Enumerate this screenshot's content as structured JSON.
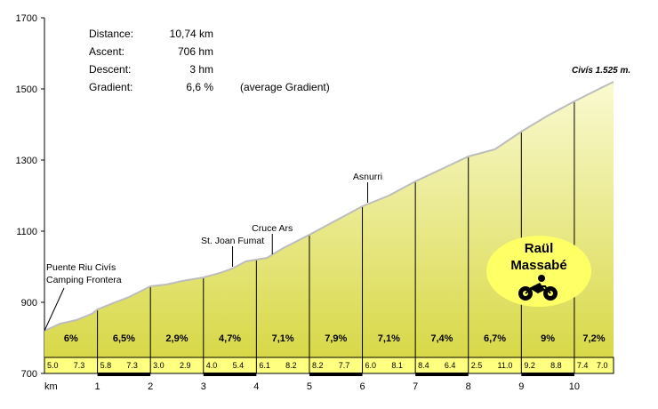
{
  "chart_data": {
    "type": "area",
    "title": "",
    "xlabel": "km",
    "ylabel": "",
    "xlim": [
      0,
      10.74
    ],
    "ylim": [
      700,
      1700
    ],
    "y_ticks": [
      "700",
      "900",
      "1100",
      "1300",
      "1500",
      "1700"
    ],
    "km_marks": [
      "1",
      "2",
      "3",
      "4",
      "5",
      "6",
      "7",
      "8",
      "9",
      "10"
    ],
    "profile": [
      {
        "km": 0.0,
        "alt": 820
      },
      {
        "km": 0.3,
        "alt": 840
      },
      {
        "km": 0.6,
        "alt": 850
      },
      {
        "km": 0.9,
        "alt": 868
      },
      {
        "km": 1.0,
        "alt": 880
      },
      {
        "km": 1.3,
        "alt": 898
      },
      {
        "km": 1.6,
        "alt": 915
      },
      {
        "km": 2.0,
        "alt": 945
      },
      {
        "km": 2.3,
        "alt": 950
      },
      {
        "km": 2.6,
        "alt": 960
      },
      {
        "km": 3.0,
        "alt": 970
      },
      {
        "km": 3.3,
        "alt": 982
      },
      {
        "km": 3.55,
        "alt": 995
      },
      {
        "km": 3.8,
        "alt": 1015
      },
      {
        "km": 4.0,
        "alt": 1020
      },
      {
        "km": 4.2,
        "alt": 1025
      },
      {
        "km": 4.5,
        "alt": 1052
      },
      {
        "km": 5.0,
        "alt": 1090
      },
      {
        "km": 5.5,
        "alt": 1130
      },
      {
        "km": 6.0,
        "alt": 1170
      },
      {
        "km": 6.5,
        "alt": 1200
      },
      {
        "km": 7.0,
        "alt": 1240
      },
      {
        "km": 7.5,
        "alt": 1275
      },
      {
        "km": 8.0,
        "alt": 1310
      },
      {
        "km": 8.5,
        "alt": 1330
      },
      {
        "km": 9.0,
        "alt": 1380
      },
      {
        "km": 9.5,
        "alt": 1425
      },
      {
        "km": 10.0,
        "alt": 1465
      },
      {
        "km": 10.4,
        "alt": 1495
      },
      {
        "km": 10.74,
        "alt": 1520
      }
    ],
    "segments": [
      {
        "from": 0,
        "to": 1,
        "gradient": "6%",
        "sub": [
          "5.0",
          "7.3"
        ]
      },
      {
        "from": 1,
        "to": 2,
        "gradient": "6,5%",
        "sub": [
          "5.8",
          "7.3"
        ]
      },
      {
        "from": 2,
        "to": 3,
        "gradient": "2,9%",
        "sub": [
          "3.0",
          "2.9"
        ]
      },
      {
        "from": 3,
        "to": 4,
        "gradient": "4,7%",
        "sub": [
          "4.0",
          "5.4"
        ]
      },
      {
        "from": 4,
        "to": 5,
        "gradient": "7,1%",
        "sub": [
          "6.1",
          "8.2"
        ]
      },
      {
        "from": 5,
        "to": 6,
        "gradient": "7,9%",
        "sub": [
          "8.2",
          "7.7"
        ]
      },
      {
        "from": 6,
        "to": 7,
        "gradient": "7,1%",
        "sub": [
          "6.0",
          "8.1"
        ]
      },
      {
        "from": 7,
        "to": 8,
        "gradient": "7,4%",
        "sub": [
          "8.4",
          "6.4"
        ]
      },
      {
        "from": 8,
        "to": 9,
        "gradient": "6,7%",
        "sub": [
          "2.5",
          "11.0"
        ]
      },
      {
        "from": 9,
        "to": 10,
        "gradient": "9%",
        "sub": [
          "9.2",
          "8.8"
        ]
      },
      {
        "from": 10,
        "to": 10.74,
        "gradient": "7,2%",
        "sub": [
          "7.4",
          "7.0"
        ]
      }
    ],
    "landmarks": [
      {
        "km": 0.0,
        "alt": 820,
        "lines": [
          "Puente Riu Civís",
          "Camping Frontera"
        ]
      },
      {
        "km": 3.55,
        "alt": 995,
        "lines": [
          "St. Joan Fumat"
        ]
      },
      {
        "km": 4.3,
        "alt": 1030,
        "lines": [
          "Cruce Ars"
        ]
      },
      {
        "km": 6.1,
        "alt": 1175,
        "lines": [
          "Asnurri"
        ]
      }
    ]
  },
  "summit_label": "Civís   1.525 m.",
  "stats": [
    {
      "label": "Distance:",
      "value": "10,74 km",
      "note": ""
    },
    {
      "label": "Ascent:",
      "value": "706 hm",
      "note": ""
    },
    {
      "label": "Descent:",
      "value": "3 hm",
      "note": ""
    },
    {
      "label": "Gradient:",
      "value": "6,6 %",
      "note": "(average Gradient)"
    }
  ],
  "badge": {
    "line1": "Raül",
    "line2": "Massabé",
    "icon": "cyclist-icon",
    "color": "#ffff66"
  },
  "colors": {
    "fill_top": "#fafad2",
    "fill_bottom": "#d8d848",
    "outline": "#bdbdbd",
    "band": "#ffff80"
  }
}
